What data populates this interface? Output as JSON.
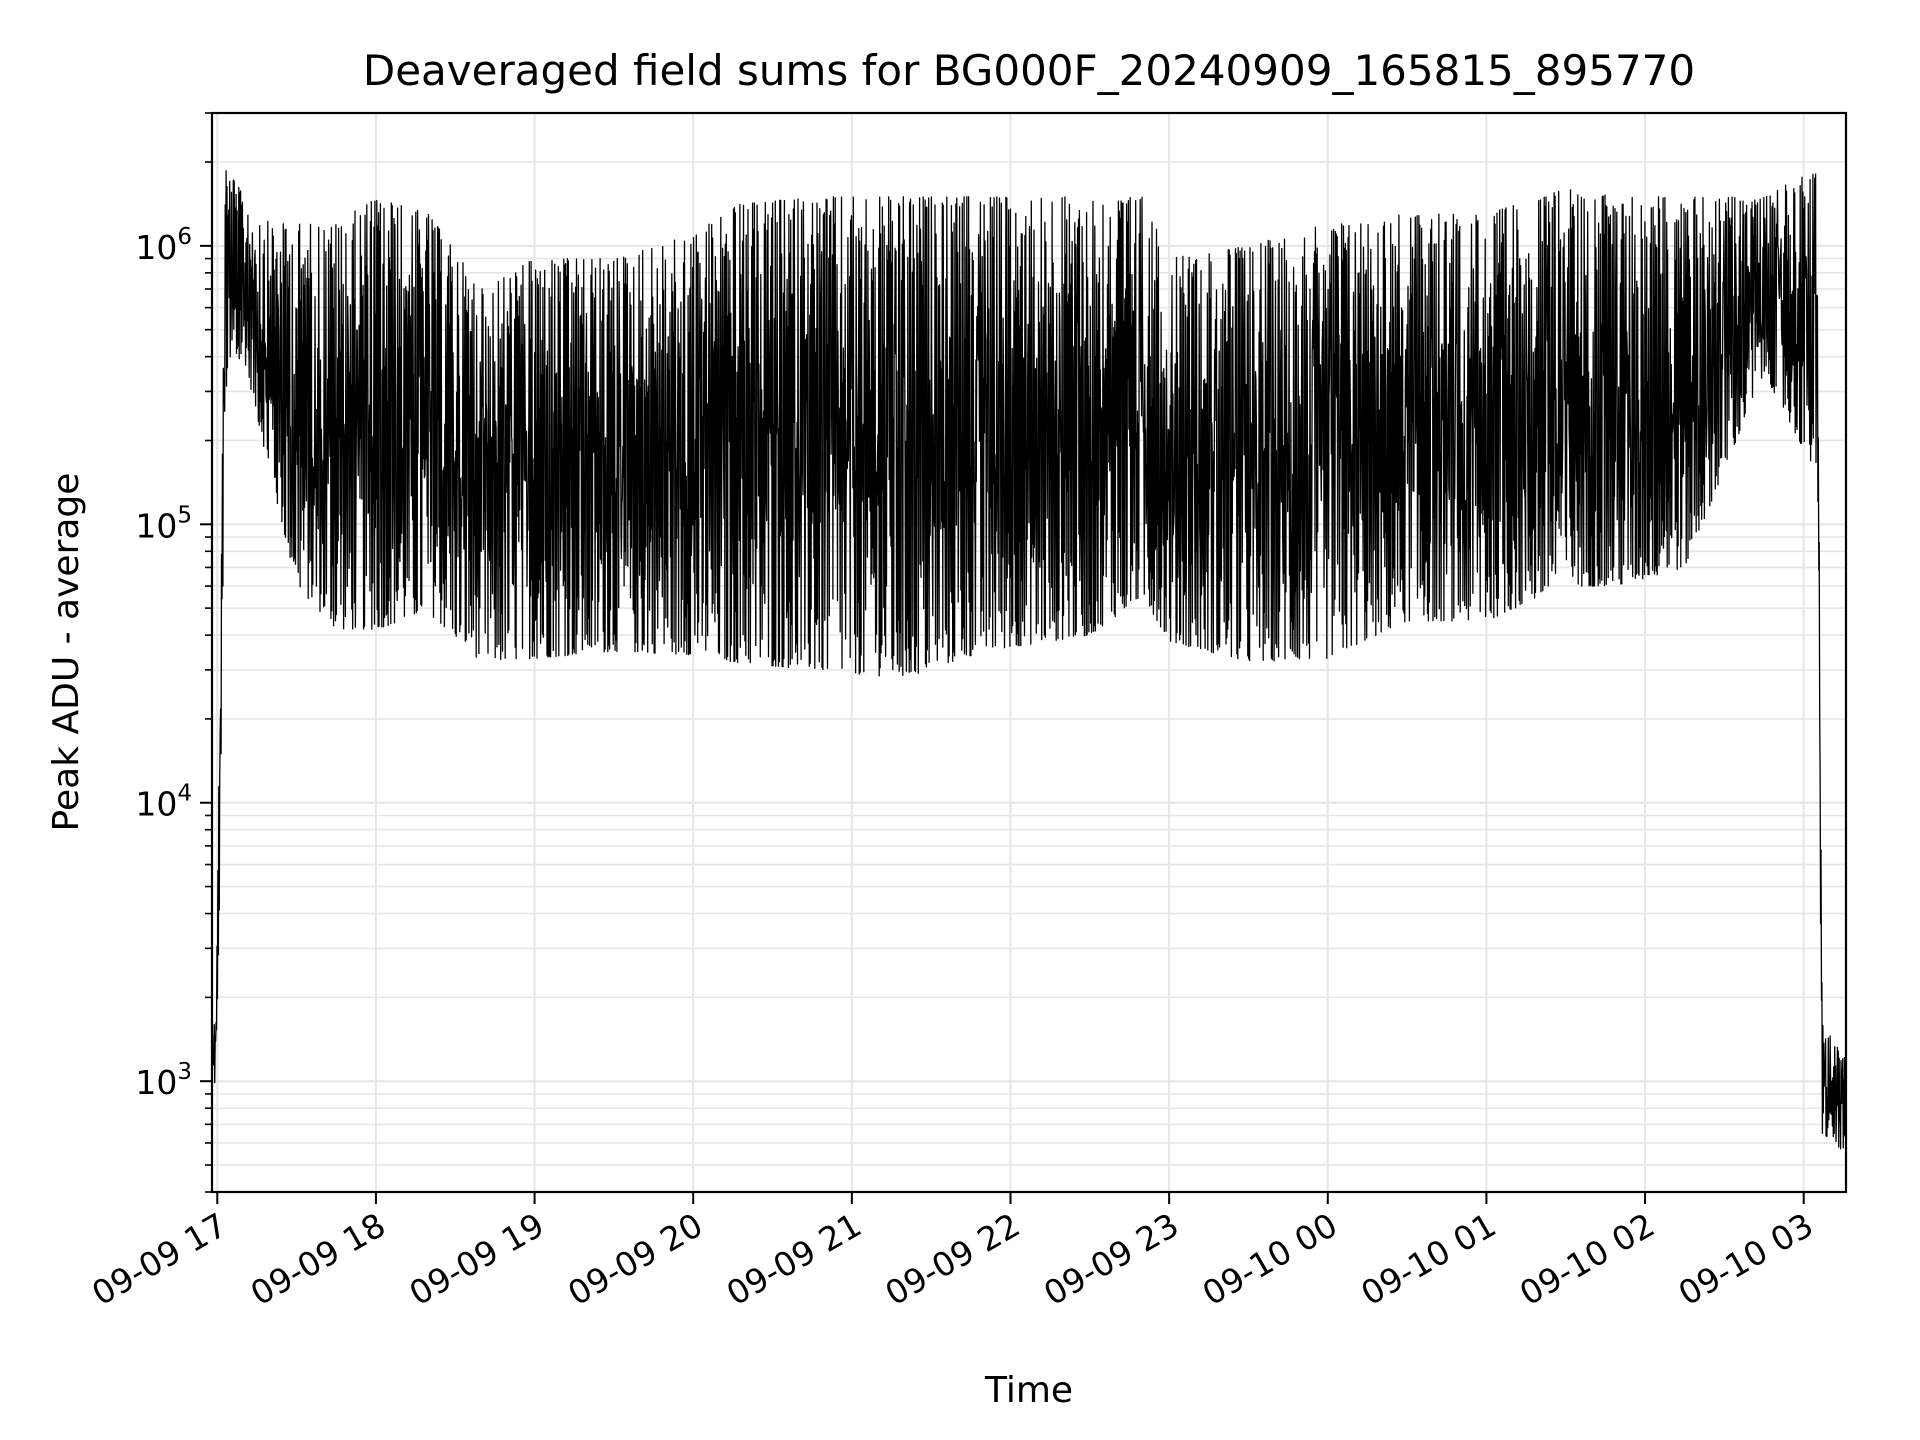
{
  "chart_data": {
    "type": "line",
    "title": "Deaveraged field sums for BG000F_20240909_165815_895770",
    "xlabel": "Time",
    "ylabel": "Peak ADU - average",
    "yscale": "log",
    "ylim": [
      400,
      3000000
    ],
    "xlim": [
      "2024-09-09 16:58",
      "2024-09-10 03:16"
    ],
    "grid": true,
    "line_color": "#000000",
    "grid_color": "#e6e6e6",
    "x_ticks": [
      {
        "t": "2024-09-09 17:00",
        "label": "09-09 17"
      },
      {
        "t": "2024-09-09 18:00",
        "label": "09-09 18"
      },
      {
        "t": "2024-09-09 19:00",
        "label": "09-09 19"
      },
      {
        "t": "2024-09-09 20:00",
        "label": "09-09 20"
      },
      {
        "t": "2024-09-09 21:00",
        "label": "09-09 21"
      },
      {
        "t": "2024-09-09 22:00",
        "label": "09-09 22"
      },
      {
        "t": "2024-09-09 23:00",
        "label": "09-09 23"
      },
      {
        "t": "2024-09-10 00:00",
        "label": "09-10 00"
      },
      {
        "t": "2024-09-10 01:00",
        "label": "09-10 01"
      },
      {
        "t": "2024-09-10 02:00",
        "label": "09-10 02"
      },
      {
        "t": "2024-09-10 03:00",
        "label": "09-10 03"
      }
    ],
    "y_ticks": [
      {
        "value": 1000,
        "base": "10",
        "exp": "3"
      },
      {
        "value": 10000,
        "base": "10",
        "exp": "4"
      },
      {
        "value": 100000,
        "base": "10",
        "exp": "5"
      },
      {
        "value": 1000000,
        "base": "10",
        "exp": "6"
      }
    ],
    "series": [
      {
        "envelope": [
          {
            "t": "2024-09-09 16:58",
            "low": 1000,
            "high": 1400
          },
          {
            "t": "2024-09-09 17:00",
            "low": 950,
            "high": 3700
          },
          {
            "t": "2024-09-09 17:03",
            "low": 300000,
            "high": 2000000
          },
          {
            "t": "2024-09-09 17:10",
            "low": 400000,
            "high": 1500000
          },
          {
            "t": "2024-09-09 17:20",
            "low": 150000,
            "high": 1200000
          },
          {
            "t": "2024-09-09 17:30",
            "low": 60000,
            "high": 1200000
          },
          {
            "t": "2024-09-09 17:45",
            "low": 42000,
            "high": 1200000
          },
          {
            "t": "2024-09-09 18:00",
            "low": 42000,
            "high": 1500000
          },
          {
            "t": "2024-09-09 18:20",
            "low": 48000,
            "high": 1300000
          },
          {
            "t": "2024-09-09 18:40",
            "low": 32000,
            "high": 700000
          },
          {
            "t": "2024-09-09 19:00",
            "low": 33000,
            "high": 900000
          },
          {
            "t": "2024-09-09 19:30",
            "low": 35000,
            "high": 900000
          },
          {
            "t": "2024-09-09 20:00",
            "low": 34000,
            "high": 1100000
          },
          {
            "t": "2024-09-09 20:15",
            "low": 32000,
            "high": 1400000
          },
          {
            "t": "2024-09-09 20:45",
            "low": 30000,
            "high": 1500000
          },
          {
            "t": "2024-09-09 21:20",
            "low": 28000,
            "high": 1500000
          },
          {
            "t": "2024-09-09 21:50",
            "low": 35000,
            "high": 1500000
          },
          {
            "t": "2024-09-09 22:30",
            "low": 40000,
            "high": 1500000
          },
          {
            "t": "2024-09-09 22:50",
            "low": 55000,
            "high": 1500000
          },
          {
            "t": "2024-09-09 23:00",
            "low": 38000,
            "high": 900000
          },
          {
            "t": "2024-09-09 23:30",
            "low": 32000,
            "high": 1000000
          },
          {
            "t": "2024-09-10 00:00",
            "low": 33000,
            "high": 1200000
          },
          {
            "t": "2024-09-10 00:30",
            "low": 45000,
            "high": 1300000
          },
          {
            "t": "2024-09-10 01:00",
            "low": 45000,
            "high": 1300000
          },
          {
            "t": "2024-09-10 01:30",
            "low": 60000,
            "high": 1600000
          },
          {
            "t": "2024-09-10 01:50",
            "low": 60000,
            "high": 1500000
          },
          {
            "t": "2024-09-10 02:15",
            "low": 70000,
            "high": 1500000
          },
          {
            "t": "2024-09-10 02:45",
            "low": 350000,
            "high": 1500000
          },
          {
            "t": "2024-09-10 03:05",
            "low": 150000,
            "high": 1900000
          },
          {
            "t": "2024-09-10 03:07",
            "low": 650,
            "high": 1600
          },
          {
            "t": "2024-09-10 03:16",
            "low": 550,
            "high": 1200
          }
        ]
      }
    ]
  }
}
